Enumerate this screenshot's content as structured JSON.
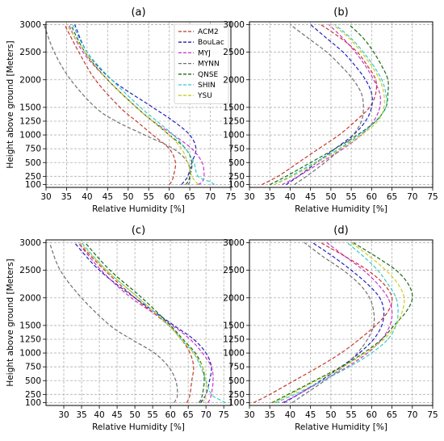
{
  "chart_data": [
    {
      "type": "line",
      "title": "(a)",
      "xlabel": "Relative Humidity [%]",
      "ylabel": "Height above ground [Meters]",
      "xlim": [
        30,
        75
      ],
      "ylim": [
        50,
        3050
      ],
      "xticks": [
        30,
        35,
        40,
        45,
        50,
        55,
        60,
        65,
        70,
        75
      ],
      "yticks": [
        100,
        250,
        500,
        750,
        1000,
        1250,
        1500,
        2000,
        2500,
        3000
      ],
      "grid": true,
      "legend": "top-right",
      "y": [
        100,
        150,
        250,
        500,
        750,
        1000,
        1250,
        1500,
        2000,
        2500,
        3000
      ],
      "series": [
        {
          "name": "ACM2",
          "color": "#c0392b",
          "values": [
            60,
            60.5,
            61,
            61.5,
            60,
            56,
            52,
            48,
            42,
            38,
            34.5
          ]
        },
        {
          "name": "BouLac",
          "color": "#1f1fbf",
          "values": [
            63,
            63.5,
            64.5,
            65.5,
            66.5,
            65,
            61,
            56,
            46,
            40,
            37
          ]
        },
        {
          "name": "MYJ",
          "color": "#cc33cc",
          "values": [
            67,
            68,
            68.5,
            68,
            65.5,
            61,
            56,
            52,
            45,
            39,
            35.5
          ]
        },
        {
          "name": "MYNN",
          "color": "#707070",
          "values": [
            64.5,
            65,
            65,
            64.5,
            61,
            54,
            47,
            42,
            36,
            32,
            29.5
          ]
        },
        {
          "name": "QNSE",
          "color": "#1a6b1a",
          "values": [
            64,
            64.5,
            65,
            65.5,
            64,
            60,
            56,
            52,
            45,
            39.5,
            36
          ]
        },
        {
          "name": "SHIN",
          "color": "#33cccc",
          "values": [
            71,
            70,
            67,
            66,
            64,
            61,
            57,
            53,
            46,
            40,
            36.5
          ]
        },
        {
          "name": "YSU",
          "color": "#cccc22",
          "values": [
            67,
            66.5,
            65.5,
            64.5,
            63,
            60,
            56,
            52,
            45,
            39.5,
            35
          ]
        }
      ]
    },
    {
      "type": "line",
      "title": "(b)",
      "xlabel": "Relative Humidity [%]",
      "ylabel": "",
      "xlim": [
        30,
        75
      ],
      "ylim": [
        50,
        3050
      ],
      "xticks": [
        30,
        35,
        40,
        45,
        50,
        55,
        60,
        65,
        70,
        75
      ],
      "yticks": [
        100,
        250,
        500,
        750,
        1000,
        1250,
        1500,
        2000,
        2500,
        3000
      ],
      "grid": true,
      "legend": "",
      "y": [
        100,
        250,
        500,
        750,
        1000,
        1250,
        1500,
        1750,
        2000,
        2250,
        2500,
        2750,
        3000
      ],
      "series": [
        {
          "name": "ACM2",
          "color": "#c0392b",
          "values": [
            33,
            37,
            42,
            47,
            52,
            56,
            59.5,
            61,
            61,
            59,
            56.5,
            52.5,
            47.5
          ]
        },
        {
          "name": "BouLac",
          "color": "#1f1fbf",
          "values": [
            39,
            42,
            46.5,
            51,
            55.5,
            58.5,
            60,
            60,
            58.5,
            56,
            53,
            49,
            45
          ]
        },
        {
          "name": "MYJ",
          "color": "#cc33cc",
          "values": [
            38,
            42,
            47.5,
            53,
            57.5,
            60.5,
            62,
            62,
            60.5,
            58.5,
            56,
            53,
            49.5
          ]
        },
        {
          "name": "MYNN",
          "color": "#707070",
          "values": [
            41,
            44,
            48.5,
            52.5,
            55.5,
            57.5,
            58,
            57.5,
            55.5,
            52.5,
            49,
            44.5,
            40
          ]
        },
        {
          "name": "QNSE",
          "color": "#1a6b1a",
          "values": [
            35,
            39,
            45,
            51,
            56.5,
            61,
            63.5,
            64,
            64,
            62.5,
            60.5,
            58,
            54.5
          ]
        },
        {
          "name": "SHIN",
          "color": "#33cccc",
          "values": [
            36,
            40,
            46,
            52,
            57,
            61,
            63.5,
            63.5,
            62.5,
            60.5,
            58,
            55,
            51
          ]
        },
        {
          "name": "YSU",
          "color": "#cccc22",
          "values": [
            36,
            40.5,
            46.5,
            52.5,
            57.5,
            61.5,
            63,
            63,
            62,
            60,
            57.5,
            54.5,
            50.5
          ]
        }
      ]
    },
    {
      "type": "line",
      "title": "(c)",
      "xlabel": "Relative Humidity [%]",
      "ylabel": "Height above ground [Meters]",
      "xlim": [
        25,
        77
      ],
      "ylim": [
        50,
        3050
      ],
      "xticks": [
        30,
        35,
        40,
        45,
        50,
        55,
        60,
        65,
        70,
        75
      ],
      "yticks": [
        100,
        250,
        500,
        750,
        1000,
        1250,
        1500,
        2000,
        2500,
        3000
      ],
      "grid": true,
      "legend": "",
      "y": [
        100,
        150,
        250,
        500,
        750,
        1000,
        1250,
        1500,
        2000,
        2500,
        3000
      ],
      "series": [
        {
          "name": "ACM2",
          "color": "#c0392b",
          "values": [
            64.5,
            65,
            65.5,
            66,
            66.5,
            65.5,
            63,
            59.5,
            50,
            41.5,
            34
          ]
        },
        {
          "name": "BouLac",
          "color": "#1f1fbf",
          "values": [
            68.5,
            69,
            70,
            71,
            71.5,
            70,
            66.5,
            61,
            50,
            40,
            33
          ]
        },
        {
          "name": "MYJ",
          "color": "#cc33cc",
          "values": [
            70.5,
            71,
            71.5,
            72,
            71.5,
            69,
            65.5,
            60.5,
            49,
            40.5,
            34
          ]
        },
        {
          "name": "MYNN",
          "color": "#707070",
          "values": [
            61,
            61.5,
            62,
            61.5,
            59.5,
            55.5,
            49,
            43,
            35,
            29,
            26
          ]
        },
        {
          "name": "QNSE",
          "color": "#1a6b1a",
          "values": [
            68,
            68.5,
            69,
            69.5,
            69,
            67,
            63.5,
            60,
            52,
            43,
            36
          ]
        },
        {
          "name": "SHIN",
          "color": "#33cccc",
          "values": [
            75.5,
            74,
            71.5,
            70,
            68.5,
            66.5,
            63,
            59.5,
            51,
            42,
            35
          ]
        },
        {
          "name": "YSU",
          "color": "#cccc22",
          "values": [
            69,
            69.5,
            70,
            70,
            69,
            66.5,
            63,
            59.5,
            51,
            42,
            34.5
          ]
        }
      ]
    },
    {
      "type": "line",
      "title": "(d)",
      "xlabel": "Relative Humidity [%]",
      "ylabel": "",
      "xlim": [
        30,
        75
      ],
      "ylim": [
        50,
        3050
      ],
      "xticks": [
        30,
        35,
        40,
        45,
        50,
        55,
        60,
        65,
        70,
        75
      ],
      "yticks": [
        100,
        250,
        500,
        750,
        1000,
        1250,
        1500,
        2000,
        2500,
        3000
      ],
      "grid": true,
      "legend": "",
      "y": [
        100,
        250,
        500,
        750,
        1000,
        1250,
        1500,
        1750,
        2000,
        2250,
        2500,
        2750,
        3000
      ],
      "series": [
        {
          "name": "ACM2",
          "color": "#c0392b",
          "values": [
            31,
            35,
            41,
            47,
            52.5,
            57,
            61,
            64,
            65,
            63,
            59,
            53.5,
            47.5
          ]
        },
        {
          "name": "BouLac",
          "color": "#1f1fbf",
          "values": [
            38.5,
            42,
            47.5,
            52.5,
            57,
            60.5,
            62.5,
            63,
            62,
            59,
            55,
            50.5,
            45.5
          ]
        },
        {
          "name": "MYJ",
          "color": "#cc33cc",
          "values": [
            38,
            42,
            48,
            54,
            59,
            62.5,
            64.5,
            65,
            64,
            61.5,
            58,
            53.5,
            49
          ]
        },
        {
          "name": "MYNN",
          "color": "#707070",
          "values": [
            40.5,
            43.5,
            48.5,
            53,
            56.5,
            59,
            60.5,
            60.5,
            59.5,
            57,
            53,
            48,
            43.5
          ]
        },
        {
          "name": "QNSE",
          "color": "#1a6b1a",
          "values": [
            35.5,
            39.5,
            46,
            52.5,
            58,
            62.5,
            65.5,
            68.5,
            70,
            69,
            66,
            61,
            55.5
          ]
        },
        {
          "name": "SHIN",
          "color": "#33cccc",
          "values": [
            36.5,
            41,
            48,
            54.5,
            60,
            64,
            66,
            66.5,
            66,
            64,
            61.5,
            58,
            54
          ]
        },
        {
          "name": "YSU",
          "color": "#cccc22",
          "values": [
            36,
            40,
            46.5,
            53,
            58.5,
            63,
            66,
            67.5,
            68,
            66.5,
            63.5,
            59.5,
            55
          ]
        }
      ]
    }
  ]
}
